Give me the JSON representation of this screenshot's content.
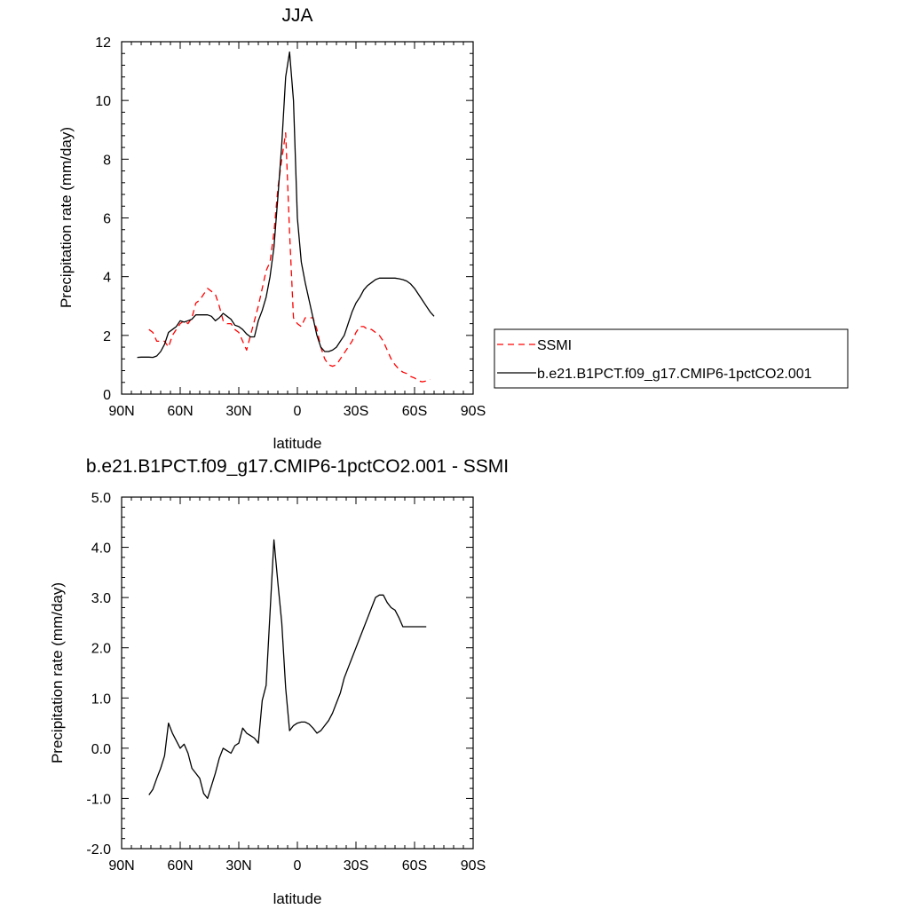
{
  "chart_data": [
    {
      "type": "line",
      "title": "JJA",
      "xlabel": "latitude",
      "ylabel": "Precipitation rate (mm/day)",
      "xlim": [
        90,
        -90
      ],
      "ylim": [
        0,
        12
      ],
      "xticks": [
        {
          "value": 90,
          "label": "90N"
        },
        {
          "value": 60,
          "label": "60N"
        },
        {
          "value": 30,
          "label": "30N"
        },
        {
          "value": 0,
          "label": "0"
        },
        {
          "value": -30,
          "label": "30S"
        },
        {
          "value": -60,
          "label": "60S"
        },
        {
          "value": -90,
          "label": "90S"
        }
      ],
      "yticks": [
        {
          "value": 0,
          "label": "0"
        },
        {
          "value": 2,
          "label": "2"
        },
        {
          "value": 4,
          "label": "4"
        },
        {
          "value": 6,
          "label": "6"
        },
        {
          "value": 8,
          "label": "8"
        },
        {
          "value": 10,
          "label": "10"
        },
        {
          "value": 12,
          "label": "12"
        }
      ],
      "grid": false,
      "legend_position": "right",
      "series": [
        {
          "name": "SSMI",
          "color": "#ff0000",
          "style": "dashed",
          "x": [
            76,
            74,
            72,
            70,
            68,
            66,
            64,
            62,
            60,
            58,
            56,
            54,
            52,
            50,
            48,
            46,
            44,
            42,
            40,
            38,
            36,
            34,
            32,
            30,
            28,
            26,
            24,
            22,
            20,
            18,
            16,
            14,
            12,
            10,
            8,
            6,
            4,
            2,
            0,
            -2,
            -4,
            -6,
            -8,
            -10,
            -12,
            -14,
            -16,
            -18,
            -20,
            -22,
            -24,
            -26,
            -28,
            -30,
            -32,
            -34,
            -36,
            -38,
            -40,
            -42,
            -44,
            -46,
            -48,
            -50,
            -52,
            -54,
            -56,
            -58,
            -60,
            -62,
            -64,
            -66,
            -68
          ],
          "y": [
            2.2,
            2.1,
            1.8,
            1.8,
            1.8,
            1.6,
            2.0,
            2.2,
            2.4,
            2.5,
            2.4,
            2.6,
            3.1,
            3.2,
            3.4,
            3.6,
            3.5,
            3.4,
            3.0,
            2.5,
            2.4,
            2.4,
            2.2,
            2.1,
            1.8,
            1.5,
            2.0,
            2.5,
            3.0,
            3.6,
            4.2,
            4.5,
            5.5,
            7.0,
            8.0,
            8.9,
            5.5,
            2.6,
            2.4,
            2.3,
            2.6,
            2.6,
            2.6,
            2.2,
            1.6,
            1.2,
            1.0,
            0.95,
            1.0,
            1.2,
            1.4,
            1.6,
            1.8,
            2.1,
            2.3,
            2.3,
            2.2,
            2.2,
            2.1,
            2.0,
            1.8,
            1.5,
            1.2,
            1.0,
            0.85,
            0.75,
            0.7,
            0.6,
            0.55,
            0.45,
            0.42,
            0.45,
            0.5
          ]
        },
        {
          "name": "b.e21.B1PCT.f09_g17.CMIP6-1pctCO2.001",
          "color": "#000000",
          "style": "solid",
          "x": [
            82,
            80,
            78,
            76,
            74,
            72,
            70,
            68,
            66,
            64,
            62,
            60,
            58,
            56,
            54,
            52,
            50,
            48,
            46,
            44,
            42,
            40,
            38,
            36,
            34,
            32,
            30,
            28,
            26,
            24,
            22,
            20,
            18,
            16,
            14,
            12,
            10,
            8,
            6,
            4,
            2,
            0,
            -2,
            -4,
            -6,
            -8,
            -10,
            -12,
            -14,
            -16,
            -18,
            -20,
            -22,
            -24,
            -26,
            -28,
            -30,
            -32,
            -34,
            -36,
            -38,
            -40,
            -42,
            -44,
            -46,
            -48,
            -50,
            -52,
            -54,
            -56,
            -58,
            -60,
            -62,
            -64,
            -66,
            -68,
            -70
          ],
          "y": [
            1.25,
            1.26,
            1.26,
            1.26,
            1.25,
            1.3,
            1.45,
            1.7,
            2.1,
            2.2,
            2.3,
            2.5,
            2.45,
            2.5,
            2.55,
            2.7,
            2.7,
            2.7,
            2.7,
            2.65,
            2.5,
            2.6,
            2.75,
            2.65,
            2.55,
            2.35,
            2.3,
            2.2,
            2.05,
            1.95,
            1.95,
            2.5,
            2.85,
            3.3,
            4.0,
            5.0,
            6.7,
            8.5,
            10.8,
            11.65,
            10.0,
            6.0,
            4.5,
            3.8,
            3.2,
            2.6,
            2.0,
            1.6,
            1.45,
            1.45,
            1.5,
            1.6,
            1.8,
            2.0,
            2.4,
            2.8,
            3.1,
            3.3,
            3.55,
            3.7,
            3.8,
            3.9,
            3.95,
            3.95,
            3.95,
            3.95,
            3.95,
            3.93,
            3.9,
            3.85,
            3.75,
            3.6,
            3.4,
            3.2,
            3.0,
            2.8,
            2.65
          ]
        }
      ]
    },
    {
      "type": "line",
      "title": "b.e21.B1PCT.f09_g17.CMIP6-1pctCO2.001 - SSMI",
      "xlabel": "latitude",
      "ylabel": "Precipitation rate (mm/day)",
      "xlim": [
        90,
        -90
      ],
      "ylim": [
        -2,
        5
      ],
      "xticks": [
        {
          "value": 90,
          "label": "90N"
        },
        {
          "value": 60,
          "label": "60N"
        },
        {
          "value": 30,
          "label": "30N"
        },
        {
          "value": 0,
          "label": "0"
        },
        {
          "value": -30,
          "label": "30S"
        },
        {
          "value": -60,
          "label": "60S"
        },
        {
          "value": -90,
          "label": "90S"
        }
      ],
      "yticks": [
        {
          "value": -2,
          "label": "-2.0"
        },
        {
          "value": -1,
          "label": "-1.0"
        },
        {
          "value": 0,
          "label": "0.0"
        },
        {
          "value": 1,
          "label": "1.0"
        },
        {
          "value": 2,
          "label": "2.0"
        },
        {
          "value": 3,
          "label": "3.0"
        },
        {
          "value": 4,
          "label": "4.0"
        },
        {
          "value": 5,
          "label": "5.0"
        }
      ],
      "grid": false,
      "series": [
        {
          "color": "#000000",
          "style": "solid",
          "x": [
            76,
            74,
            72,
            70,
            68,
            66,
            64,
            62,
            60,
            58,
            56,
            54,
            52,
            50,
            48,
            46,
            44,
            42,
            40,
            38,
            36,
            34,
            32,
            30,
            28,
            26,
            24,
            22,
            20,
            18,
            16,
            14,
            12,
            10,
            8,
            6,
            4,
            2,
            0,
            -2,
            -4,
            -6,
            -8,
            -10,
            -12,
            -14,
            -16,
            -18,
            -20,
            -22,
            -24,
            -26,
            -28,
            -30,
            -32,
            -34,
            -36,
            -38,
            -40,
            -42,
            -44,
            -46,
            -48,
            -50,
            -52,
            -54,
            -56,
            -58,
            -60,
            -62,
            -64,
            -66
          ],
          "y": [
            -0.93,
            -0.82,
            -0.6,
            -0.4,
            -0.15,
            0.5,
            0.3,
            0.15,
            0.0,
            0.08,
            -0.1,
            -0.4,
            -0.5,
            -0.6,
            -0.9,
            -1.0,
            -0.75,
            -0.5,
            -0.2,
            0.0,
            -0.05,
            -0.1,
            0.05,
            0.1,
            0.4,
            0.3,
            0.25,
            0.2,
            0.1,
            0.95,
            1.25,
            2.7,
            4.15,
            3.3,
            2.5,
            1.2,
            0.35,
            0.45,
            0.5,
            0.52,
            0.52,
            0.48,
            0.4,
            0.3,
            0.35,
            0.45,
            0.55,
            0.7,
            0.9,
            1.1,
            1.4,
            1.6,
            1.8,
            2.0,
            2.2,
            2.4,
            2.6,
            2.8,
            3.0,
            3.05,
            3.05,
            2.9,
            2.8,
            2.75,
            2.6,
            2.42,
            2.42,
            2.42,
            2.42,
            2.42,
            2.42,
            2.42
          ]
        }
      ]
    }
  ]
}
